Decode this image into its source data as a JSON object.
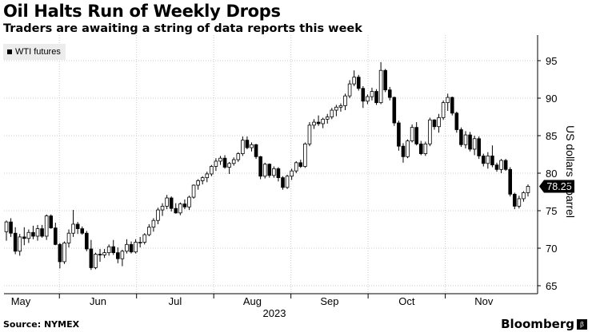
{
  "title": "Oil Halts Run of Weekly Drops",
  "subtitle": "Traders are awaiting a string of data reports this week",
  "source": "Source: NYMEX",
  "brand": "Bloomberg",
  "chart_data": {
    "type": "candlestick",
    "series_name": "WTI futures",
    "ylabel": "US dollars a barrel",
    "ylim": [
      65,
      95
    ],
    "yticks": [
      "95",
      "90",
      "85",
      "80",
      "75",
      "70",
      "65"
    ],
    "xticks": [
      "May",
      "Jun",
      "Jul",
      "Aug",
      "Sep",
      "Oct",
      "Nov"
    ],
    "year_label": "2023",
    "last_value": "78.25",
    "grid": "horizontal dotted",
    "legend_position": "top-left",
    "colors": {
      "up": "#ffffff",
      "down": "#000000",
      "outline": "#000000",
      "grid": "#cccccc"
    },
    "candles": [
      [
        72.2,
        73.7,
        71.0,
        73.5
      ],
      [
        73.5,
        74.0,
        71.5,
        72.0
      ],
      [
        72.0,
        72.8,
        69.2,
        69.6
      ],
      [
        69.6,
        71.9,
        69.0,
        71.5
      ],
      [
        71.5,
        72.8,
        70.4,
        71.3
      ],
      [
        71.3,
        72.5,
        70.7,
        72.1
      ],
      [
        72.1,
        73.0,
        71.2,
        71.6
      ],
      [
        71.6,
        73.1,
        71.0,
        72.6
      ],
      [
        72.6,
        73.1,
        71.4,
        71.6
      ],
      [
        71.6,
        74.5,
        71.1,
        74.3
      ],
      [
        74.3,
        74.5,
        72.6,
        72.7
      ],
      [
        72.7,
        73.4,
        70.4,
        70.5
      ],
      [
        70.5,
        70.7,
        67.3,
        68.2
      ],
      [
        68.2,
        70.9,
        67.9,
        70.7
      ],
      [
        70.7,
        72.5,
        70.1,
        72.0
      ],
      [
        72.0,
        75.1,
        71.5,
        73.2
      ],
      [
        73.2,
        73.5,
        71.9,
        72.6
      ],
      [
        72.6,
        72.9,
        71.8,
        72.0
      ],
      [
        72.0,
        72.3,
        69.6,
        69.9
      ],
      [
        69.9,
        71.1,
        67.1,
        67.4
      ],
      [
        67.4,
        69.4,
        67.2,
        69.2
      ],
      [
        69.2,
        69.9,
        68.2,
        69.1
      ],
      [
        69.1,
        69.9,
        68.7,
        69.4
      ],
      [
        69.4,
        70.5,
        69.0,
        70.2
      ],
      [
        70.2,
        71.1,
        69.1,
        69.4
      ],
      [
        69.4,
        70.1,
        68.0,
        68.6
      ],
      [
        68.6,
        69.8,
        67.6,
        69.6
      ],
      [
        69.6,
        71.2,
        69.3,
        70.5
      ],
      [
        70.5,
        70.9,
        69.3,
        69.5
      ],
      [
        69.5,
        71.2,
        69.3,
        70.8
      ],
      [
        70.8,
        71.5,
        70.1,
        70.8
      ],
      [
        70.8,
        72.0,
        70.5,
        71.8
      ],
      [
        71.8,
        73.2,
        71.6,
        72.8
      ],
      [
        72.8,
        74.0,
        72.2,
        73.7
      ],
      [
        73.7,
        75.4,
        73.2,
        75.1
      ],
      [
        75.1,
        76.0,
        74.3,
        75.6
      ],
      [
        75.6,
        77.1,
        75.2,
        76.7
      ],
      [
        76.7,
        76.9,
        74.9,
        75.3
      ],
      [
        75.3,
        76.0,
        74.6,
        74.7
      ],
      [
        74.7,
        76.1,
        74.4,
        75.9
      ],
      [
        75.9,
        76.5,
        75.2,
        75.5
      ],
      [
        75.5,
        77.0,
        75.1,
        76.8
      ],
      [
        76.8,
        78.5,
        76.6,
        78.4
      ],
      [
        78.4,
        79.2,
        77.8,
        79.0
      ],
      [
        79.0,
        79.6,
        78.5,
        79.4
      ],
      [
        79.4,
        80.2,
        78.8,
        79.9
      ],
      [
        79.9,
        81.1,
        79.6,
        80.9
      ],
      [
        80.9,
        82.0,
        80.3,
        81.6
      ],
      [
        81.6,
        82.3,
        81.1,
        82.0
      ],
      [
        82.0,
        82.4,
        80.6,
        80.8
      ],
      [
        80.8,
        81.5,
        79.9,
        81.3
      ],
      [
        81.3,
        82.1,
        81.0,
        81.8
      ],
      [
        81.8,
        82.8,
        81.5,
        82.6
      ],
      [
        82.6,
        84.9,
        82.3,
        84.4
      ],
      [
        84.4,
        84.9,
        83.2,
        83.4
      ],
      [
        83.4,
        84.1,
        82.9,
        83.8
      ],
      [
        83.8,
        83.9,
        81.9,
        82.2
      ],
      [
        82.2,
        82.3,
        79.2,
        79.6
      ],
      [
        79.6,
        81.4,
        79.3,
        81.2
      ],
      [
        81.2,
        81.3,
        79.4,
        79.7
      ],
      [
        79.7,
        80.9,
        79.4,
        80.6
      ],
      [
        80.6,
        80.8,
        78.9,
        79.4
      ],
      [
        79.4,
        79.6,
        77.8,
        78.1
      ],
      [
        78.1,
        79.8,
        77.9,
        79.6
      ],
      [
        79.6,
        80.6,
        79.1,
        80.3
      ],
      [
        80.3,
        81.6,
        80.0,
        81.4
      ],
      [
        81.4,
        81.8,
        80.7,
        80.9
      ],
      [
        80.9,
        84.1,
        80.7,
        83.9
      ],
      [
        83.9,
        86.8,
        83.6,
        86.4
      ],
      [
        86.4,
        87.2,
        85.9,
        86.8
      ],
      [
        86.8,
        87.7,
        86.3,
        86.6
      ],
      [
        86.6,
        87.4,
        86.0,
        87.2
      ],
      [
        87.2,
        87.9,
        86.6,
        87.5
      ],
      [
        87.5,
        88.7,
        87.2,
        88.4
      ],
      [
        88.4,
        89.1,
        87.6,
        88.8
      ],
      [
        88.8,
        89.3,
        88.2,
        89.0
      ],
      [
        89.0,
        90.6,
        88.4,
        90.3
      ],
      [
        90.3,
        92.4,
        90.0,
        91.9
      ],
      [
        91.9,
        93.7,
        91.6,
        92.8
      ],
      [
        92.8,
        93.1,
        91.0,
        91.3
      ],
      [
        91.3,
        91.6,
        88.7,
        89.6
      ],
      [
        89.6,
        90.5,
        89.2,
        90.2
      ],
      [
        90.2,
        91.4,
        89.7,
        90.9
      ],
      [
        90.9,
        91.2,
        89.1,
        89.4
      ],
      [
        89.4,
        94.8,
        89.2,
        93.7
      ],
      [
        93.7,
        93.9,
        90.8,
        91.1
      ],
      [
        91.1,
        91.5,
        89.7,
        90.1
      ],
      [
        90.1,
        90.2,
        86.3,
        86.7
      ],
      [
        86.7,
        87.0,
        83.0,
        83.6
      ],
      [
        83.6,
        84.0,
        81.4,
        82.2
      ],
      [
        82.2,
        84.5,
        82.0,
        84.3
      ],
      [
        84.3,
        86.5,
        84.1,
        86.1
      ],
      [
        86.1,
        86.8,
        83.7,
        83.9
      ],
      [
        83.9,
        84.3,
        82.4,
        82.6
      ],
      [
        82.6,
        84.2,
        82.3,
        83.9
      ],
      [
        83.9,
        87.4,
        83.6,
        87.1
      ],
      [
        87.1,
        87.2,
        85.8,
        86.2
      ],
      [
        86.2,
        87.9,
        85.4,
        87.4
      ],
      [
        87.4,
        89.7,
        87.1,
        89.4
      ],
      [
        89.4,
        90.6,
        88.3,
        90.1
      ],
      [
        90.1,
        90.2,
        87.7,
        88.0
      ],
      [
        88.0,
        88.2,
        85.4,
        85.8
      ],
      [
        85.8,
        86.1,
        83.5,
        83.8
      ],
      [
        83.8,
        85.6,
        83.3,
        85.1
      ],
      [
        85.1,
        85.5,
        82.9,
        83.2
      ],
      [
        83.2,
        85.0,
        82.4,
        84.6
      ],
      [
        84.6,
        84.9,
        81.9,
        82.3
      ],
      [
        82.3,
        82.6,
        80.9,
        81.3
      ],
      [
        81.3,
        82.8,
        80.6,
        82.3
      ],
      [
        82.3,
        83.7,
        80.8,
        81.1
      ],
      [
        81.1,
        81.4,
        80.2,
        80.5
      ],
      [
        80.5,
        81.9,
        80.0,
        81.7
      ],
      [
        81.7,
        81.9,
        80.3,
        80.5
      ],
      [
        80.5,
        80.8,
        76.9,
        77.2
      ],
      [
        77.2,
        77.4,
        75.2,
        75.6
      ],
      [
        75.6,
        77.0,
        75.3,
        76.6
      ],
      [
        76.6,
        77.6,
        76.2,
        77.4
      ],
      [
        77.4,
        78.5,
        76.9,
        78.25
      ]
    ]
  }
}
